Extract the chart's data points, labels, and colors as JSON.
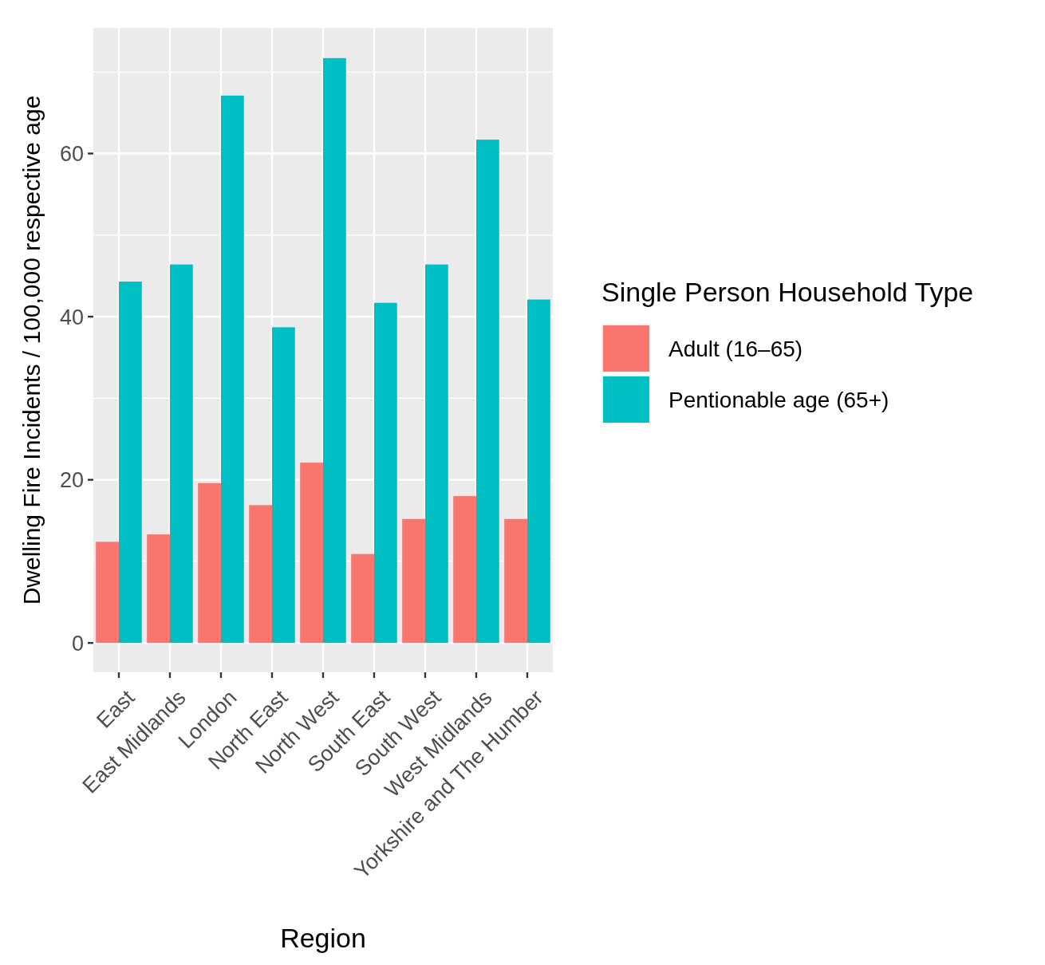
{
  "chart_data": {
    "type": "bar",
    "xlabel": "Region",
    "ylabel": "Dwelling Fire Incidents / 100,000 respective age",
    "legend_title": "Single Person Household Type",
    "categories": [
      "East",
      "East Midlands",
      "London",
      "North East",
      "North West",
      "South East",
      "South West",
      "West Midlands",
      "Yorkshire and The Humber"
    ],
    "series": [
      {
        "name": "Adult (16–65)",
        "color": "#f8766d",
        "values": [
          12.4,
          13.3,
          19.6,
          16.9,
          22.1,
          10.9,
          15.2,
          18.0,
          15.2
        ]
      },
      {
        "name": "Pentionable age (65+)",
        "color": "#00bfc4",
        "values": [
          44.3,
          46.4,
          67.1,
          38.7,
          71.7,
          41.7,
          46.4,
          61.7,
          42.1
        ]
      }
    ],
    "ylim": [
      -3.6,
      75.4
    ],
    "yticks": [
      0,
      20,
      40,
      60
    ],
    "grid": true,
    "legend": "right"
  }
}
